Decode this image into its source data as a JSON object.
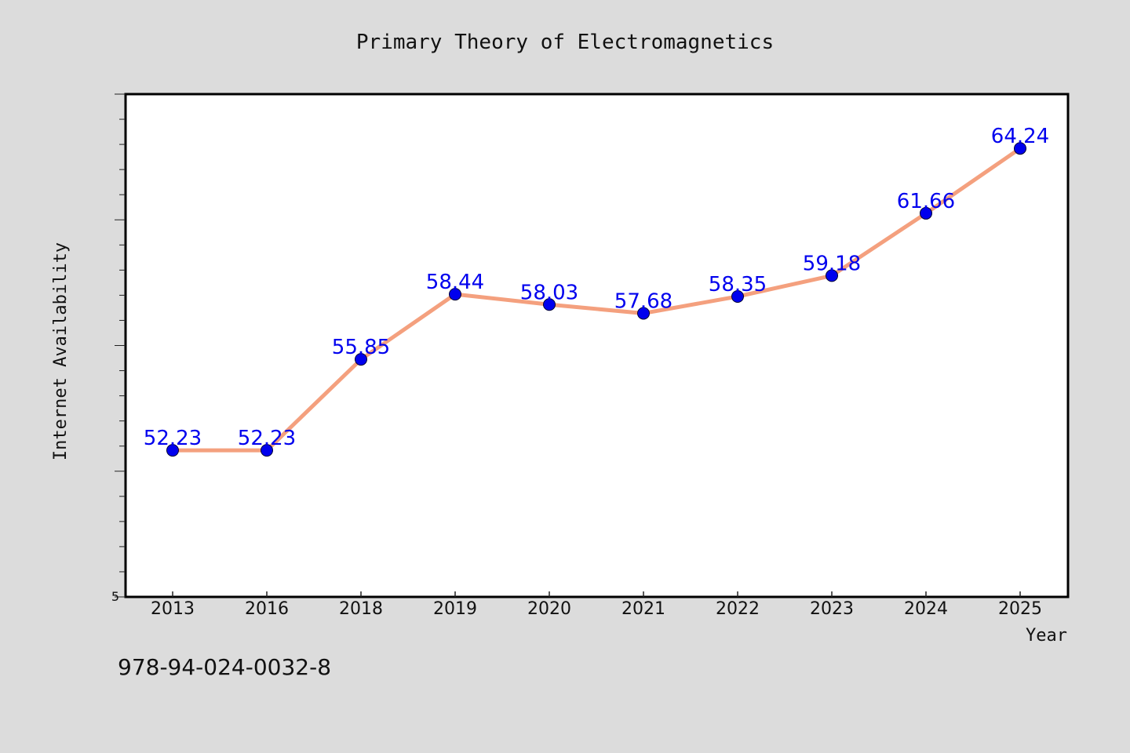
{
  "chart_data": {
    "type": "line",
    "title": "Primary Theory of Electromagnetics",
    "xlabel": "Year",
    "ylabel": "Internet Availability",
    "categories": [
      "2013",
      "2016",
      "2018",
      "2019",
      "2020",
      "2021",
      "2022",
      "2023",
      "2024",
      "2025"
    ],
    "series": [
      {
        "values": [
          52.23,
          52.23,
          55.85,
          58.44,
          58.03,
          57.68,
          58.35,
          59.18,
          61.66,
          64.24
        ],
        "labels": [
          "52.23",
          "52.23",
          "55.85",
          "58.44",
          "58.03",
          "57.68",
          "58.35",
          "59.18",
          "61.66",
          "64.24"
        ]
      }
    ],
    "ylim": [
      46.4,
      66.4
    ],
    "y_tick_label": "5",
    "y_tick_label_value": 46.4,
    "y_minor_step": 1,
    "y_major_every": 5,
    "grid": false,
    "line_color": "#f4a07e",
    "marker_color": "#0000ee",
    "label_color": "#0000ee"
  },
  "footer": {
    "isbn": "978-94-024-0032-8"
  }
}
